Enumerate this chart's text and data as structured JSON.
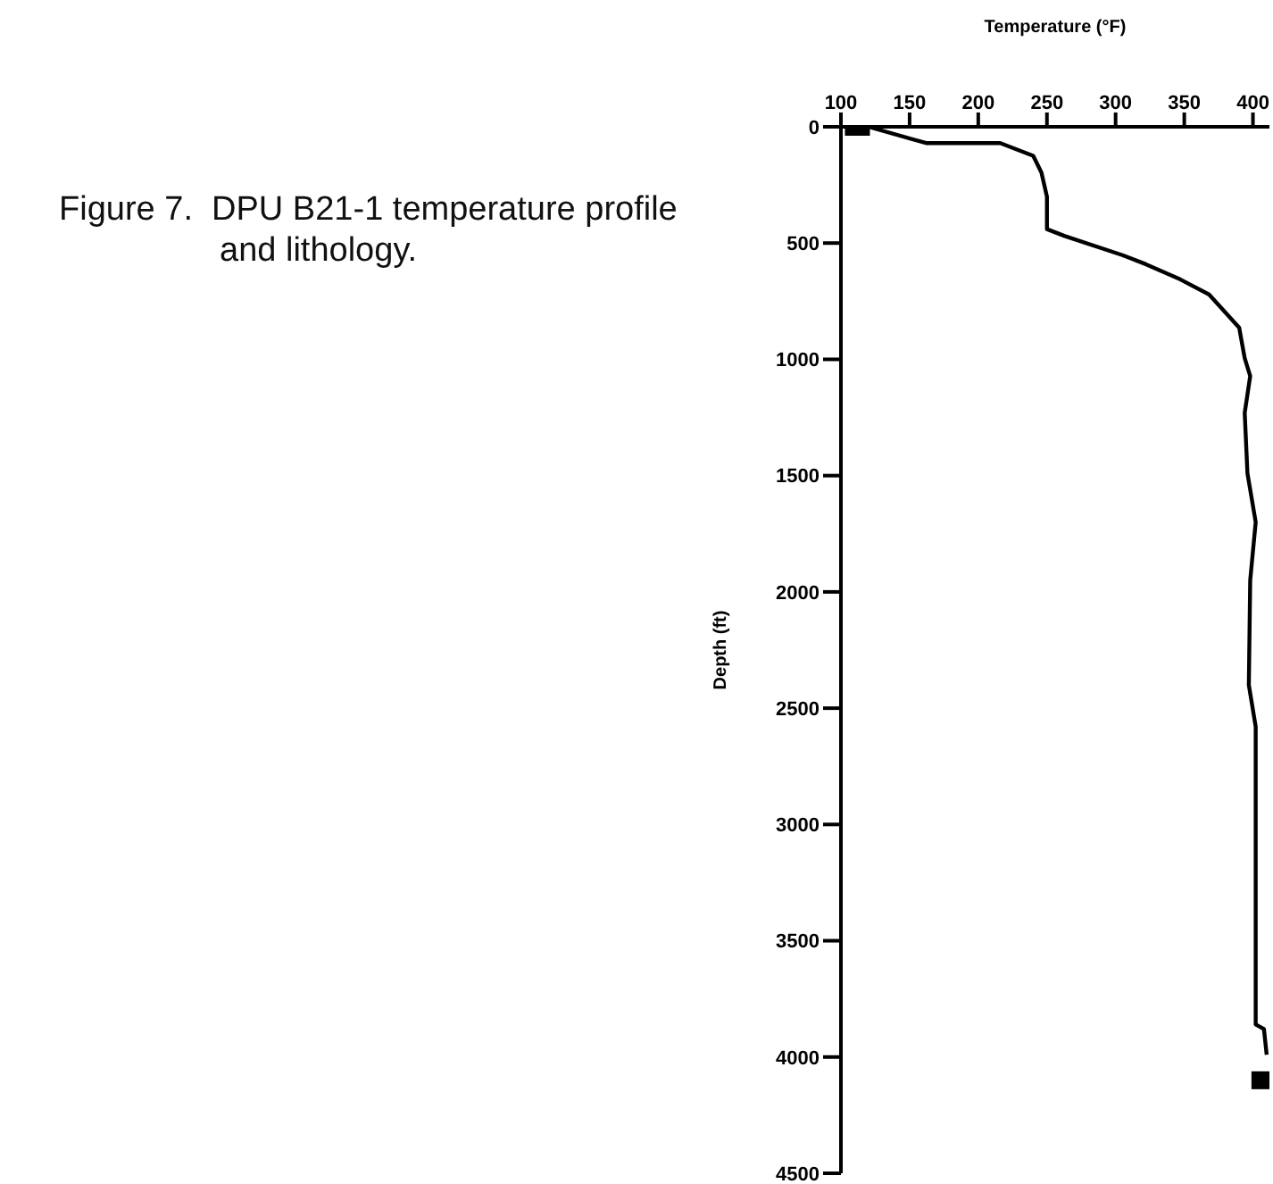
{
  "chart_data": {
    "type": "line",
    "title": "Figure 7.  DPU B21-1 temperature profile and lithology.",
    "xlabel": "Temperature (°F)",
    "ylabel": "Depth (ft)",
    "xlim": [
      100,
      412
    ],
    "xticks": [
      100,
      150,
      200,
      250,
      300,
      350,
      400
    ],
    "ylim": [
      4500,
      0
    ],
    "yticks": [
      0,
      500,
      1000,
      1500,
      2000,
      2500,
      3000,
      3500,
      4000,
      4500
    ],
    "grid": false,
    "series": [
      {
        "color": "#000000",
        "marker": "none",
        "line_style": "solid",
        "x": [
          120,
          162,
          216,
          240,
          246,
          250,
          250,
          263,
          305,
          322,
          347,
          368,
          390,
          394,
          398,
          394,
          396,
          402,
          398,
          397,
          402,
          402,
          405,
          408,
          410
        ],
        "values": [
          0,
          70,
          70,
          125,
          197,
          300,
          440,
          470,
          552,
          591,
          656,
          721,
          864,
          995,
          1072,
          1230,
          1490,
          1700,
          1950,
          2400,
          2580,
          3860,
          3870,
          3880,
          3990
        ]
      },
      {
        "type": "scatter",
        "color": "#000000",
        "marker": "square",
        "x": [
          112,
          408
        ],
        "values": [
          0,
          4100
        ]
      }
    ]
  }
}
